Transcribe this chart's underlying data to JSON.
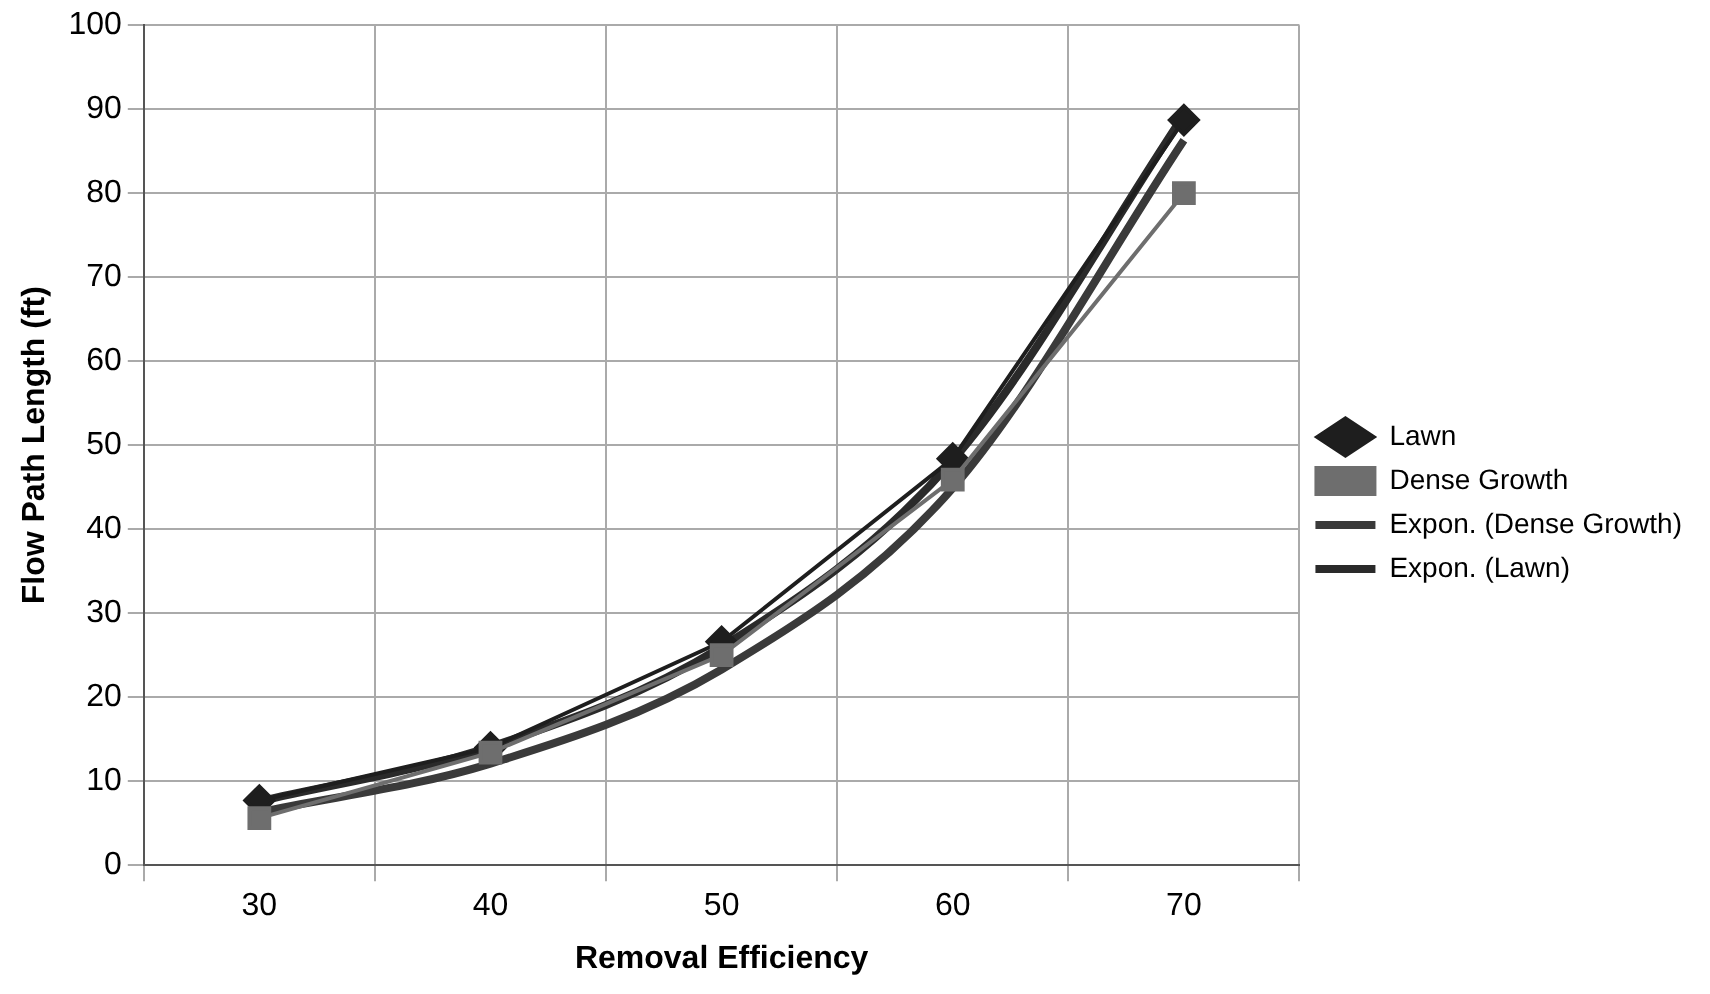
{
  "chart_data": {
    "type": "line",
    "xlabel": "Removal Efficiency",
    "ylabel": "Flow Path Length (ft)",
    "categories": [
      "30",
      "40",
      "50",
      "60",
      "70"
    ],
    "series": [
      {
        "name": "Lawn",
        "color": "#1e1e1e",
        "values": [
          7.7,
          14,
          26.6,
          48.4,
          88.7
        ],
        "marker": "diamond"
      },
      {
        "name": "Dense Growth",
        "color": "#6e6e6e",
        "values": [
          5.6,
          13.4,
          25,
          45.9,
          80
        ],
        "marker": "square"
      },
      {
        "name": "Expon. (Dense Growth)",
        "color": "#3a3a3a",
        "values": [
          6.3,
          12.1,
          23.3,
          44.9,
          86.3
        ],
        "marker": "none"
      },
      {
        "name": "Expon. (Lawn)",
        "color": "#2a2a2a",
        "values": [
          7.6,
          14.1,
          26,
          48.2,
          89.3
        ],
        "marker": "none"
      }
    ],
    "ylim": [
      0,
      100
    ],
    "yticks": [
      0,
      10,
      20,
      30,
      40,
      50,
      60,
      70,
      80,
      90,
      100
    ],
    "grid": true,
    "legend": "right",
    "line_style": "solid"
  }
}
